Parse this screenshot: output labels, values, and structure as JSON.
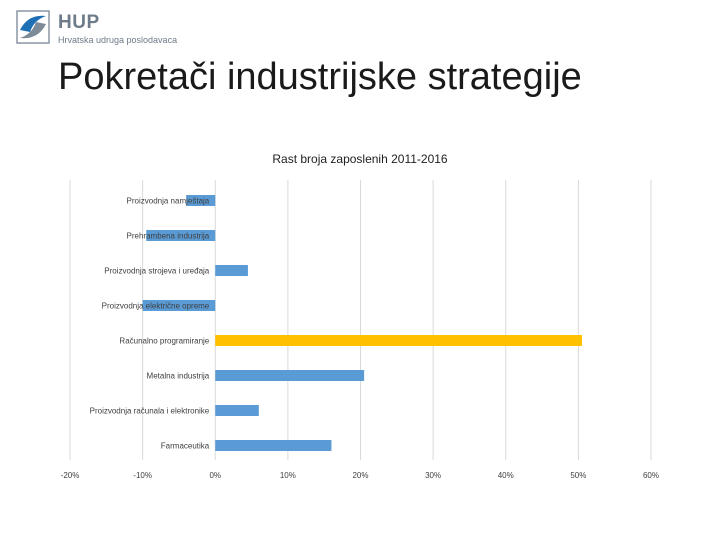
{
  "header": {
    "logo_name": "HUP",
    "logo_subtitle": "Hrvatska udruga poslodavaca",
    "logo_icon": "hup-logo-icon"
  },
  "slide": {
    "title": "Pokretači industrijske strategije"
  },
  "colors": {
    "bar": "#5b9bd5",
    "highlight": "#ffc000",
    "grid": "#d9d9d9",
    "label": "#404040"
  },
  "chart_data": {
    "type": "bar",
    "orientation": "horizontal",
    "title": "Rast broja zaposlenih 2011-2016",
    "categories": [
      "Proizvodnja namještaja",
      "Prehrambena industrija",
      "Proizvodnja strojeva i uređaja",
      "Proizvodnja električne opreme",
      "Računalno programiranje",
      "Metalna industrija",
      "Proizvodnja računala i elektronike",
      "Farmaceutika"
    ],
    "values": [
      -4,
      -9.5,
      4.5,
      -10,
      50.5,
      20.5,
      6,
      16
    ],
    "highlight_index": 4,
    "xlim": [
      -20,
      60
    ],
    "xticks": [
      -20,
      -10,
      0,
      10,
      20,
      30,
      40,
      50,
      60
    ],
    "xtick_labels": [
      "-20%",
      "-10%",
      "0%",
      "10%",
      "20%",
      "30%",
      "40%",
      "50%",
      "60%"
    ],
    "grid": true,
    "legend": "none"
  }
}
